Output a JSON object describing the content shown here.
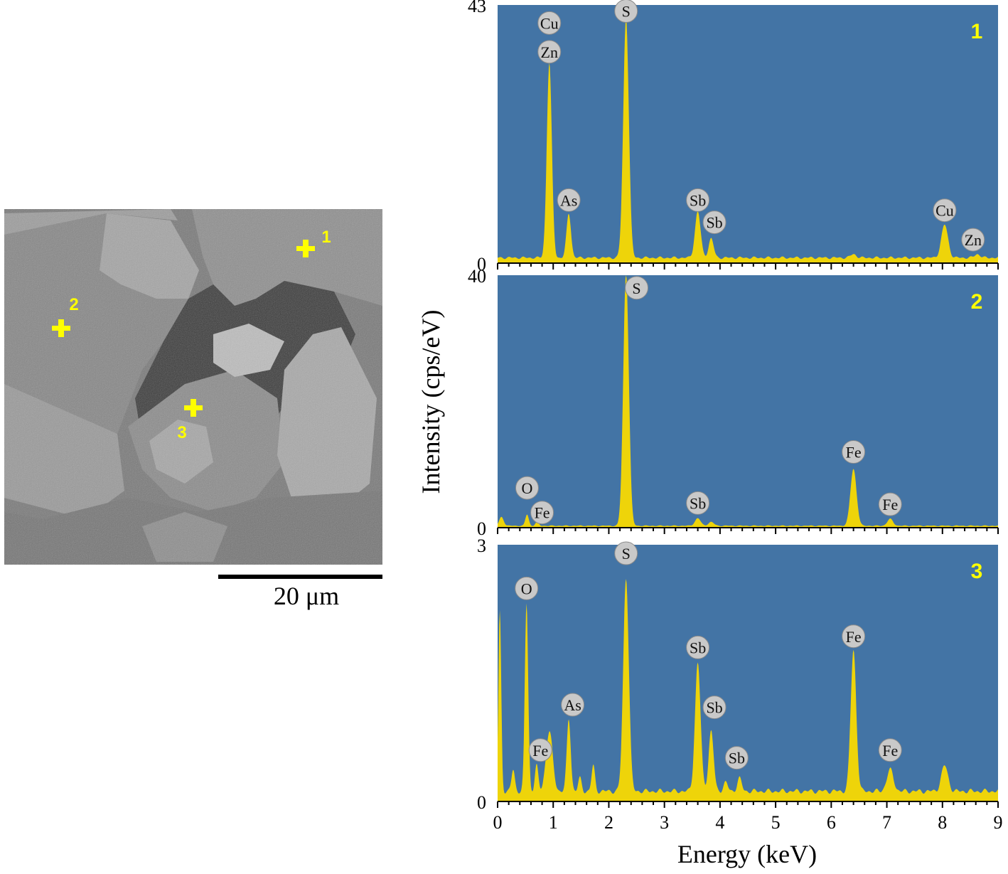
{
  "colors": {
    "plot_bg": "#4374a5",
    "spectrum": "#eed40a",
    "marker": "#ffff00",
    "peak_label_bg": "#c9c9c9"
  },
  "sem_image": {
    "scale_bar_label": "20 μm",
    "markers": [
      "1",
      "2",
      "3"
    ]
  },
  "chart_data": {
    "type": "area",
    "xlabel": "Energy (keV)",
    "ylabel": "Intensity (cps/eV)",
    "xlim": [
      0,
      9
    ],
    "xticks": [
      0,
      1,
      2,
      3,
      4,
      5,
      6,
      7,
      8,
      9
    ],
    "panels": [
      {
        "label": "1",
        "ylim": [
          0,
          43
        ],
        "yticks": [
          0,
          43
        ],
        "baseline": 0.9,
        "peaks": [
          {
            "x": 0.93,
            "y": 32.5,
            "w": 0.045
          },
          {
            "x": 1.28,
            "y": 7.4,
            "w": 0.04
          },
          {
            "x": 2.31,
            "y": 40.0,
            "w": 0.05
          },
          {
            "x": 3.6,
            "y": 7.7,
            "w": 0.05
          },
          {
            "x": 3.84,
            "y": 3.2,
            "w": 0.045
          },
          {
            "x": 6.4,
            "y": 0.6,
            "w": 0.05
          },
          {
            "x": 8.04,
            "y": 5.5,
            "w": 0.06
          },
          {
            "x": 8.63,
            "y": 0.6,
            "w": 0.05
          }
        ],
        "peak_labels": [
          {
            "text": "Cu",
            "x": 0.93,
            "y": 40.0
          },
          {
            "text": "Zn",
            "x": 0.93,
            "y": 35.2
          },
          {
            "text": "As",
            "x": 1.28,
            "y": 10.5
          },
          {
            "text": "S",
            "x": 2.31,
            "y": 42.0
          },
          {
            "text": "Sb",
            "x": 3.6,
            "y": 10.5
          },
          {
            "text": "Sb",
            "x": 3.9,
            "y": 6.8
          },
          {
            "text": "Cu",
            "x": 8.04,
            "y": 8.8
          },
          {
            "text": "Zn",
            "x": 8.55,
            "y": 3.9
          }
        ]
      },
      {
        "label": "2",
        "ylim": [
          0,
          40
        ],
        "yticks": [
          0,
          40
        ],
        "baseline": 0.3,
        "peaks": [
          {
            "x": 0.07,
            "y": 1.4,
            "w": 0.04
          },
          {
            "x": 0.53,
            "y": 1.8,
            "w": 0.03
          },
          {
            "x": 0.71,
            "y": 0.6,
            "w": 0.03
          },
          {
            "x": 2.31,
            "y": 40.0,
            "w": 0.05
          },
          {
            "x": 3.6,
            "y": 1.2,
            "w": 0.05
          },
          {
            "x": 3.84,
            "y": 0.6,
            "w": 0.05
          },
          {
            "x": 6.4,
            "y": 9.0,
            "w": 0.055
          },
          {
            "x": 7.06,
            "y": 1.1,
            "w": 0.05
          }
        ],
        "peak_labels": [
          {
            "text": "S",
            "x": 2.5,
            "y": 38.0
          },
          {
            "text": "O",
            "x": 0.53,
            "y": 6.3
          },
          {
            "text": "Fe",
            "x": 0.8,
            "y": 2.4
          },
          {
            "text": "Sb",
            "x": 3.6,
            "y": 3.9
          },
          {
            "text": "Fe",
            "x": 6.4,
            "y": 12.0
          },
          {
            "text": "Fe",
            "x": 7.06,
            "y": 3.7
          }
        ]
      },
      {
        "label": "3",
        "ylim": [
          0,
          3
        ],
        "yticks": [
          0,
          3
        ],
        "baseline": 0.12,
        "peaks": [
          {
            "x": 0.04,
            "y": 2.1,
            "w": 0.025
          },
          {
            "x": 0.28,
            "y": 0.25,
            "w": 0.03
          },
          {
            "x": 0.52,
            "y": 2.2,
            "w": 0.03
          },
          {
            "x": 0.7,
            "y": 0.3,
            "w": 0.03
          },
          {
            "x": 0.93,
            "y": 0.7,
            "w": 0.06
          },
          {
            "x": 1.28,
            "y": 0.85,
            "w": 0.035
          },
          {
            "x": 1.48,
            "y": 0.15,
            "w": 0.03
          },
          {
            "x": 1.72,
            "y": 0.3,
            "w": 0.03
          },
          {
            "x": 2.31,
            "y": 2.5,
            "w": 0.05
          },
          {
            "x": 3.6,
            "y": 1.5,
            "w": 0.05
          },
          {
            "x": 3.84,
            "y": 0.7,
            "w": 0.045
          },
          {
            "x": 4.1,
            "y": 0.1,
            "w": 0.04
          },
          {
            "x": 4.35,
            "y": 0.15,
            "w": 0.04
          },
          {
            "x": 6.4,
            "y": 1.65,
            "w": 0.05
          },
          {
            "x": 7.06,
            "y": 0.25,
            "w": 0.06
          },
          {
            "x": 8.04,
            "y": 0.3,
            "w": 0.06
          }
        ],
        "peak_labels": [
          {
            "text": "S",
            "x": 2.31,
            "y": 2.9
          },
          {
            "text": "O",
            "x": 0.52,
            "y": 2.49
          },
          {
            "text": "Sb",
            "x": 3.6,
            "y": 1.8
          },
          {
            "text": "Fe",
            "x": 6.4,
            "y": 1.93
          },
          {
            "text": "As",
            "x": 1.35,
            "y": 1.13
          },
          {
            "text": "Sb",
            "x": 3.9,
            "y": 1.1
          },
          {
            "text": "Fe",
            "x": 0.77,
            "y": 0.6
          },
          {
            "text": "Sb",
            "x": 4.3,
            "y": 0.51
          },
          {
            "text": "Fe",
            "x": 7.06,
            "y": 0.6
          }
        ]
      }
    ]
  }
}
